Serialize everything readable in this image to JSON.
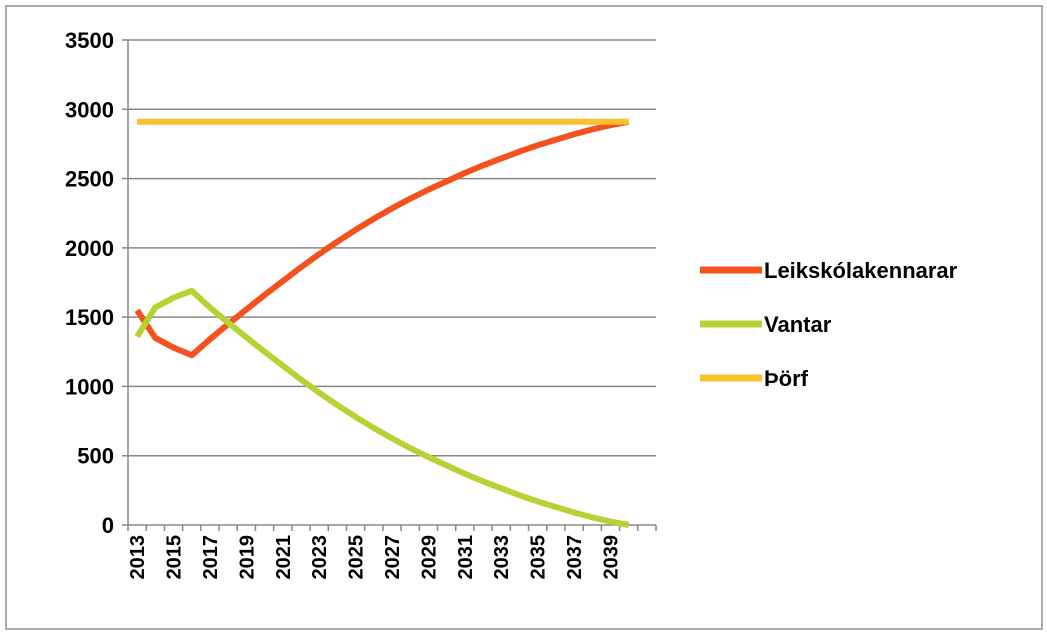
{
  "chart_data": {
    "type": "line",
    "categories": [
      "2013",
      null,
      "2015",
      null,
      "2017",
      null,
      "2019",
      null,
      "2021",
      null,
      "2023",
      null,
      "2025",
      null,
      "2027",
      null,
      "2029",
      null,
      "2031",
      null,
      "2033",
      null,
      "2035",
      null,
      "2037",
      null,
      "2039",
      null
    ],
    "series": [
      {
        "name": "Leikskólakennarar",
        "color": "#f4511e",
        "values": [
          1550,
          1350,
          1280,
          1225,
          1340,
          1450,
          1555,
          1660,
          1760,
          1860,
          1955,
          2045,
          2130,
          2210,
          2285,
          2355,
          2420,
          2480,
          2540,
          2595,
          2645,
          2695,
          2740,
          2780,
          2820,
          2855,
          2885,
          2910
        ]
      },
      {
        "name": "Vantar",
        "color": "#b5d334",
        "values": [
          1360,
          1570,
          1640,
          1690,
          1570,
          1460,
          1355,
          1250,
          1150,
          1050,
          955,
          865,
          780,
          700,
          625,
          555,
          490,
          430,
          370,
          315,
          265,
          215,
          170,
          130,
          90,
          55,
          25,
          0
        ]
      },
      {
        "name": "Þörf",
        "color": "#fbc02d",
        "values": [
          2910,
          2910,
          2910,
          2910,
          2910,
          2910,
          2910,
          2910,
          2910,
          2910,
          2910,
          2910,
          2910,
          2910,
          2910,
          2910,
          2910,
          2910,
          2910,
          2910,
          2910,
          2910,
          2910,
          2910,
          2910,
          2910,
          2910,
          2910
        ]
      }
    ],
    "ylim": [
      0,
      3500
    ],
    "yticks": [
      0,
      500,
      1000,
      1500,
      2000,
      2500,
      3000,
      3500
    ],
    "grid": true,
    "legend": "right"
  }
}
